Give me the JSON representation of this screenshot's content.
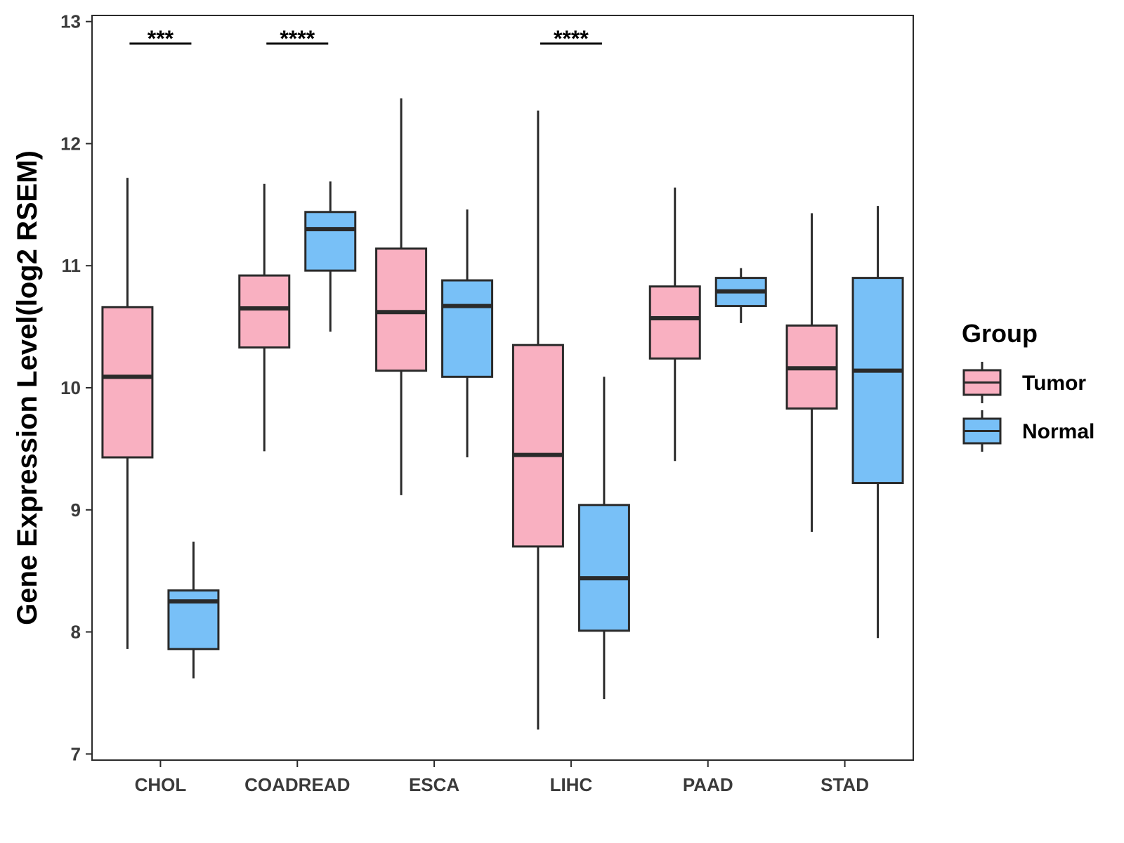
{
  "chart_data": {
    "type": "boxplot",
    "title": "",
    "xlabel": "",
    "ylabel": "Gene Expression Level(log2 RSEM)",
    "ylim": [
      6.95,
      13.05
    ],
    "yticks": [
      7,
      8,
      9,
      10,
      11,
      12,
      13
    ],
    "categories": [
      "CHOL",
      "COADREAD",
      "ESCA",
      "LIHC",
      "PAAD",
      "STAD"
    ],
    "legend": {
      "title": "Group",
      "position": "right",
      "entries": [
        {
          "name": "Tumor",
          "color": "#f9b0c1"
        },
        {
          "name": "Normal",
          "color": "#78c0f7"
        }
      ]
    },
    "series": [
      {
        "name": "Tumor",
        "color": "#f9b0c1",
        "boxes": [
          {
            "category": "CHOL",
            "min": 7.86,
            "q1": 9.43,
            "median": 10.09,
            "q3": 10.66,
            "max": 11.72
          },
          {
            "category": "COADREAD",
            "min": 9.48,
            "q1": 10.33,
            "median": 10.65,
            "q3": 10.92,
            "max": 11.67
          },
          {
            "category": "ESCA",
            "min": 9.12,
            "q1": 10.14,
            "median": 10.62,
            "q3": 11.14,
            "max": 12.37
          },
          {
            "category": "LIHC",
            "min": 7.2,
            "q1": 8.7,
            "median": 9.45,
            "q3": 10.35,
            "max": 12.27
          },
          {
            "category": "PAAD",
            "min": 9.4,
            "q1": 10.24,
            "median": 10.57,
            "q3": 10.83,
            "max": 11.64
          },
          {
            "category": "STAD",
            "min": 8.82,
            "q1": 9.83,
            "median": 10.16,
            "q3": 10.51,
            "max": 11.43
          }
        ]
      },
      {
        "name": "Normal",
        "color": "#78c0f7",
        "boxes": [
          {
            "category": "CHOL",
            "min": 7.62,
            "q1": 7.86,
            "median": 8.25,
            "q3": 8.34,
            "max": 8.74
          },
          {
            "category": "COADREAD",
            "min": 10.46,
            "q1": 10.96,
            "median": 11.3,
            "q3": 11.44,
            "max": 11.69
          },
          {
            "category": "ESCA",
            "min": 9.43,
            "q1": 10.09,
            "median": 10.67,
            "q3": 10.88,
            "max": 11.46
          },
          {
            "category": "LIHC",
            "min": 7.45,
            "q1": 8.01,
            "median": 8.44,
            "q3": 9.04,
            "max": 10.09
          },
          {
            "category": "PAAD",
            "min": 10.53,
            "q1": 10.67,
            "median": 10.79,
            "q3": 10.9,
            "max": 10.98
          },
          {
            "category": "STAD",
            "min": 7.95,
            "q1": 9.22,
            "median": 10.14,
            "q3": 10.9,
            "max": 11.49
          }
        ]
      }
    ],
    "annotations": [
      {
        "category": "CHOL",
        "label": "***",
        "y": 12.82
      },
      {
        "category": "COADREAD",
        "label": "****",
        "y": 12.82
      },
      {
        "category": "LIHC",
        "label": "****",
        "y": 12.82
      }
    ]
  }
}
